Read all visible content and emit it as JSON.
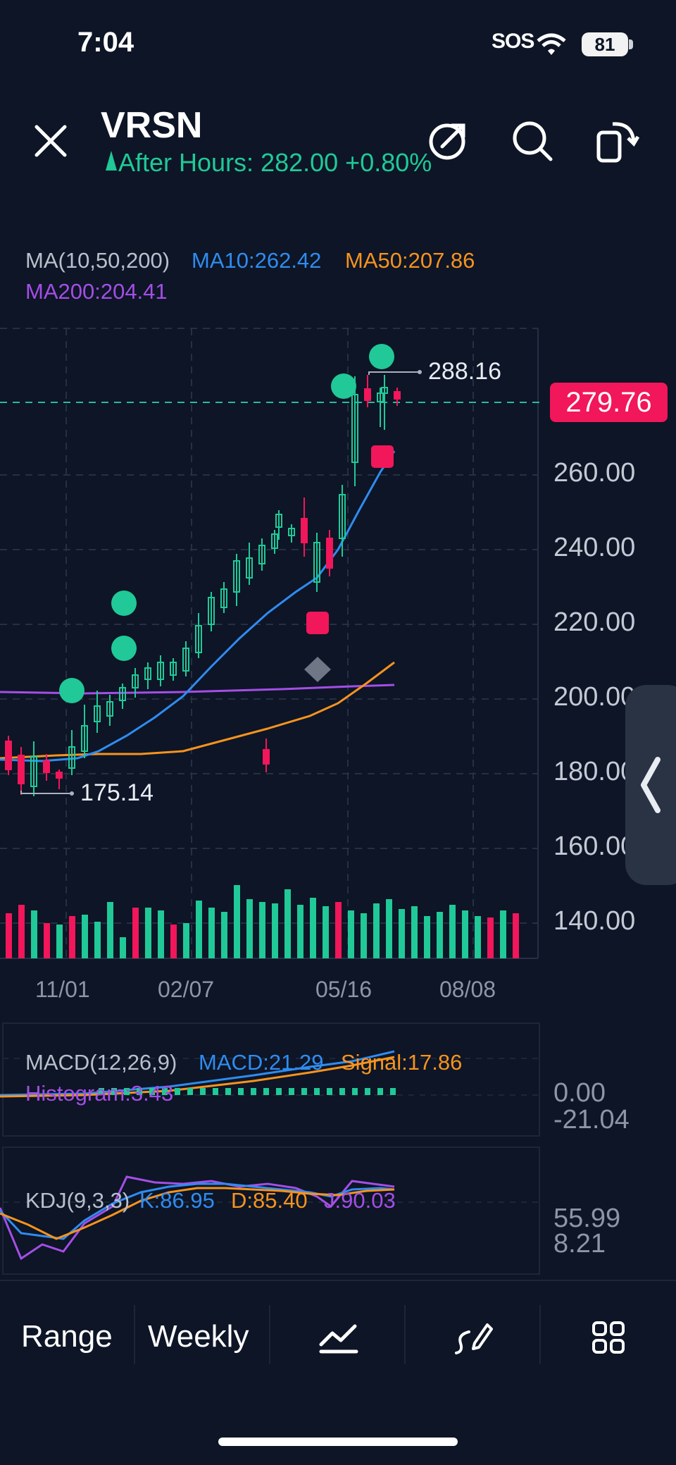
{
  "status_bar": {
    "time": "7:04",
    "sos": "SOS",
    "battery": "81"
  },
  "header": {
    "ticker": "VRSN",
    "after_hours": "After Hours: 282.00 +0.80%",
    "icons": [
      "close-icon",
      "share-icon",
      "search-icon",
      "rotate-icon"
    ]
  },
  "main_indicator": {
    "name": "MA(10,50,200)",
    "ma10": "MA10:262.42",
    "ma50": "MA50:207.86",
    "ma200": "MA200:204.41"
  },
  "price_axis": [
    "260.00",
    "240.00",
    "220.00",
    "200.00",
    "180.00",
    "160.00",
    "140.00"
  ],
  "current_price": "279.76",
  "high_label": "288.16",
  "low_label": "175.14",
  "date_axis": [
    "11/01",
    "02/07",
    "05/16",
    "08/08"
  ],
  "macd": {
    "name": "MACD(12,26,9)",
    "macd": "MACD:21.29",
    "signal": "Signal:17.86",
    "histogram": "Histogram:3.43",
    "axis": [
      "0.00",
      "-21.04"
    ]
  },
  "kdj": {
    "name": "KDJ(9,3,3)",
    "k": "K:86.95",
    "d": "D:85.40",
    "j": "J:90.03",
    "axis": [
      "55.99",
      "8.21"
    ]
  },
  "toolbar": {
    "range": "Range",
    "period": "Weekly",
    "icons": [
      "indicator-icon",
      "draw-icon",
      "grid-icon"
    ]
  },
  "colors": {
    "up": "#20c997",
    "down": "#f2165a",
    "ma10": "#2f8cf0",
    "ma50": "#f7931e",
    "ma200": "#a44ee6"
  }
}
